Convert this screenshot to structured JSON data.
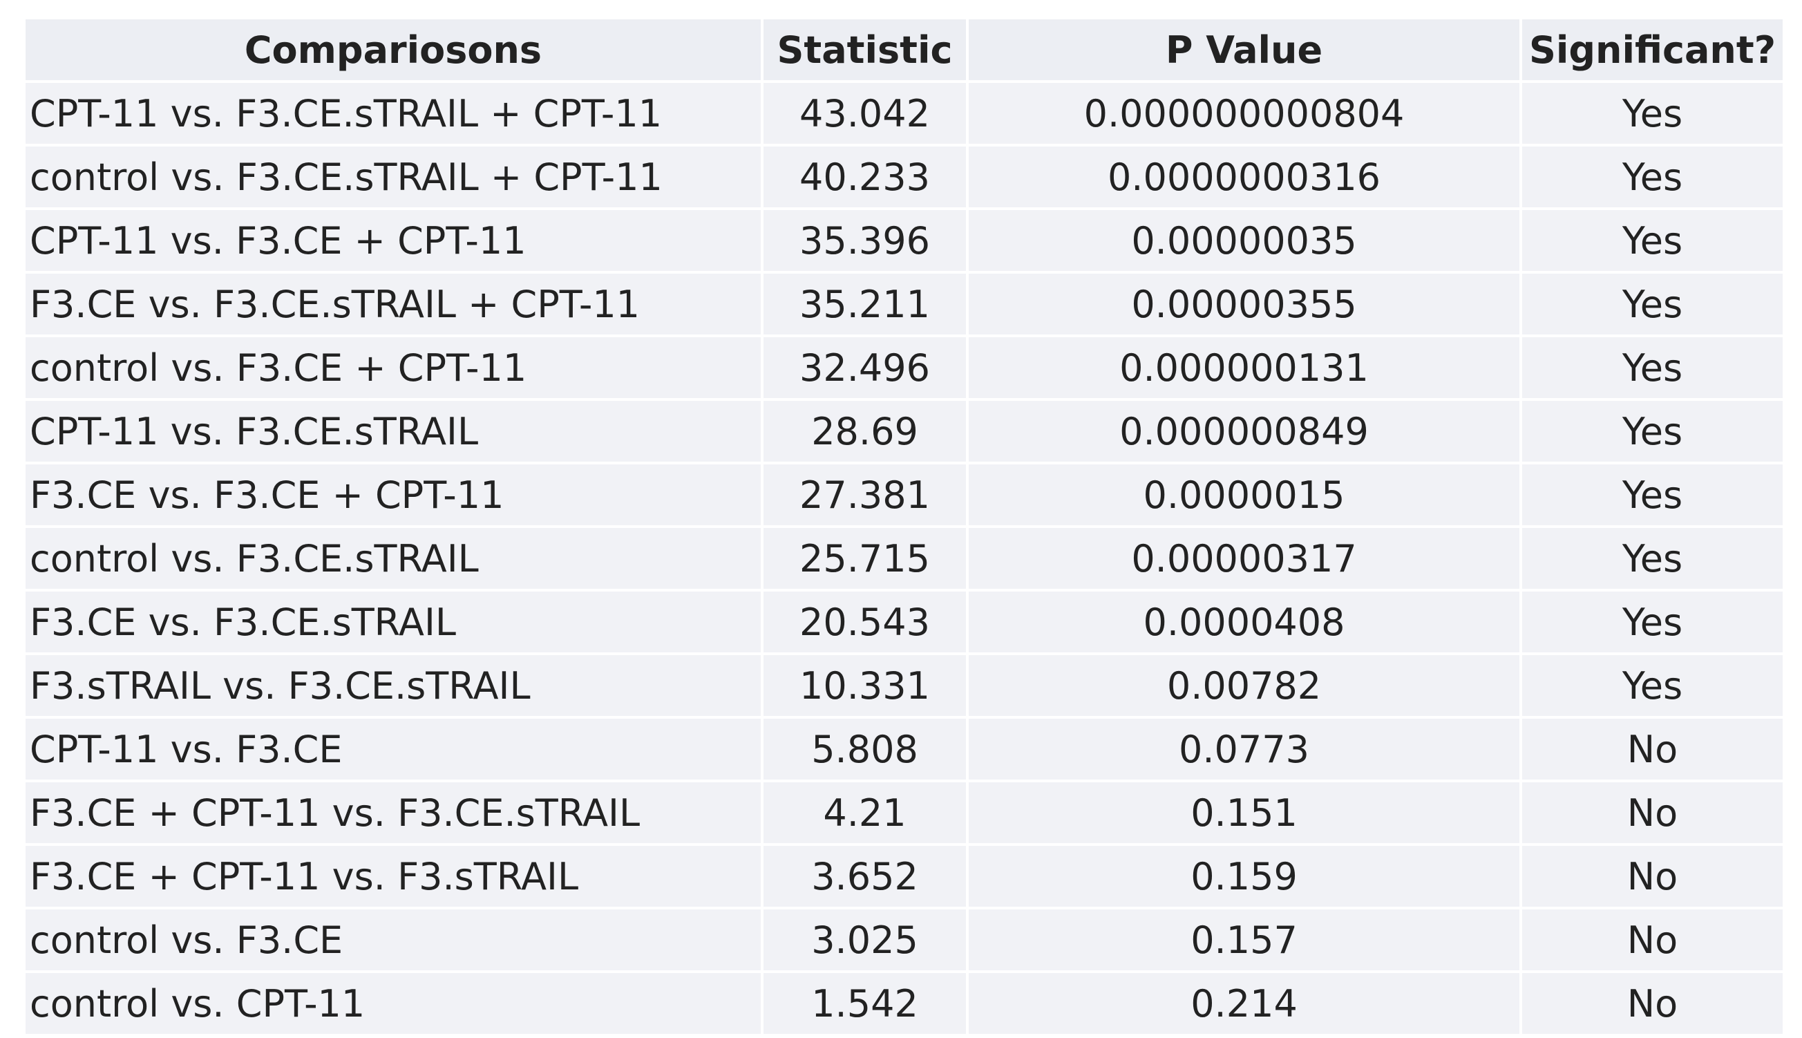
{
  "table": {
    "header": [
      "Compariosons",
      "Statistic",
      "P Value",
      "Significant?"
    ],
    "rows": [
      [
        "CPT-11 vs. F3.CE.sTRAIL + CPT-11",
        "43.042",
        "0.000000000804",
        "Yes"
      ],
      [
        "control vs. F3.CE.sTRAIL + CPT-11",
        "40.233",
        "0.0000000316",
        "Yes"
      ],
      [
        "CPT-11 vs. F3.CE + CPT-11",
        "35.396",
        "0.00000035",
        "Yes"
      ],
      [
        "F3.CE vs. F3.CE.sTRAIL + CPT-11",
        "35.211",
        "0.00000355",
        "Yes"
      ],
      [
        "control vs. F3.CE + CPT-11",
        "32.496",
        "0.000000131",
        "Yes"
      ],
      [
        "CPT-11 vs. F3.CE.sTRAIL",
        "28.69",
        "0.000000849",
        "Yes"
      ],
      [
        "F3.CE vs. F3.CE + CPT-11",
        "27.381",
        "0.0000015",
        "Yes"
      ],
      [
        "control vs. F3.CE.sTRAIL",
        "25.715",
        "0.00000317",
        "Yes"
      ],
      [
        "F3.CE vs. F3.CE.sTRAIL",
        "20.543",
        "0.0000408",
        "Yes"
      ],
      [
        "F3.sTRAIL vs. F3.CE.sTRAIL",
        "10.331",
        "0.00782",
        "Yes"
      ],
      [
        "CPT-11 vs. F3.CE",
        "5.808",
        "0.0773",
        "No"
      ],
      [
        "F3.CE + CPT-11 vs. F3.CE.sTRAIL",
        "4.21",
        "0.151",
        "No"
      ],
      [
        "F3.CE + CPT-11 vs. F3.sTRAIL",
        "3.652",
        "0.159",
        "No"
      ],
      [
        "control vs. F3.CE",
        "3.025",
        "0.157",
        "No"
      ],
      [
        "control vs. CPT-11",
        "1.542",
        "0.214",
        "No"
      ]
    ]
  }
}
